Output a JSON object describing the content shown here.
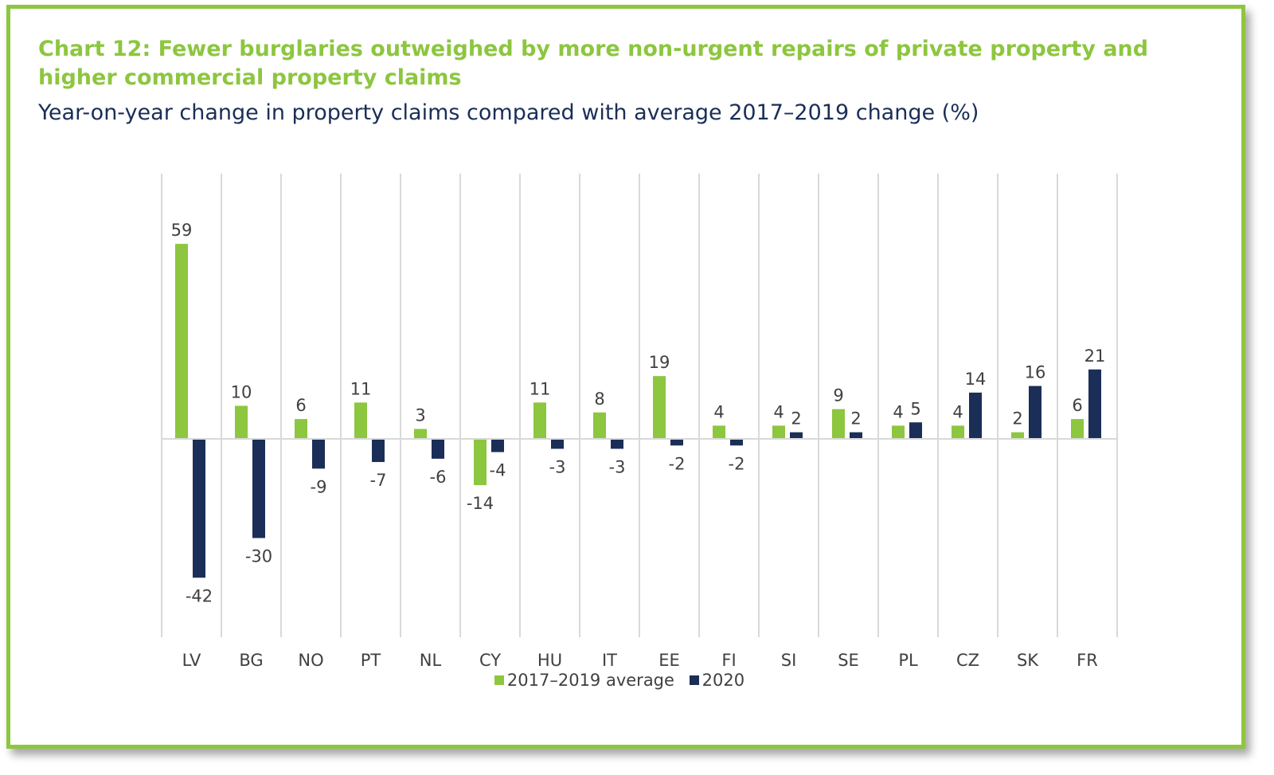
{
  "chart_data": {
    "type": "bar",
    "title": "Chart 12: Fewer burglaries outweighed by more non-urgent repairs of private property and higher commercial property claims",
    "subtitle": "Year-on-year change in property claims compared with average 2017–2019 change (%)",
    "categories": [
      "LV",
      "BG",
      "NO",
      "PT",
      "NL",
      "CY",
      "HU",
      "IT",
      "EE",
      "FI",
      "SI",
      "SE",
      "PL",
      "CZ",
      "SK",
      "FR"
    ],
    "series": [
      {
        "name": "2017–2019 average",
        "color": "#8dc63f",
        "values": [
          59,
          10,
          6,
          11,
          3,
          -14,
          11,
          8,
          19,
          4,
          4,
          9,
          4,
          4,
          2,
          6
        ]
      },
      {
        "name": "2020",
        "color": "#1a2e57",
        "values": [
          -42,
          -30,
          -9,
          -7,
          -6,
          -4,
          -3,
          -3,
          -2,
          -2,
          2,
          2,
          5,
          14,
          16,
          21
        ]
      }
    ],
    "ylim": [
      -60,
      80
    ],
    "grid": "vertical separators",
    "legend_position": "bottom-center",
    "data_labels": true
  }
}
